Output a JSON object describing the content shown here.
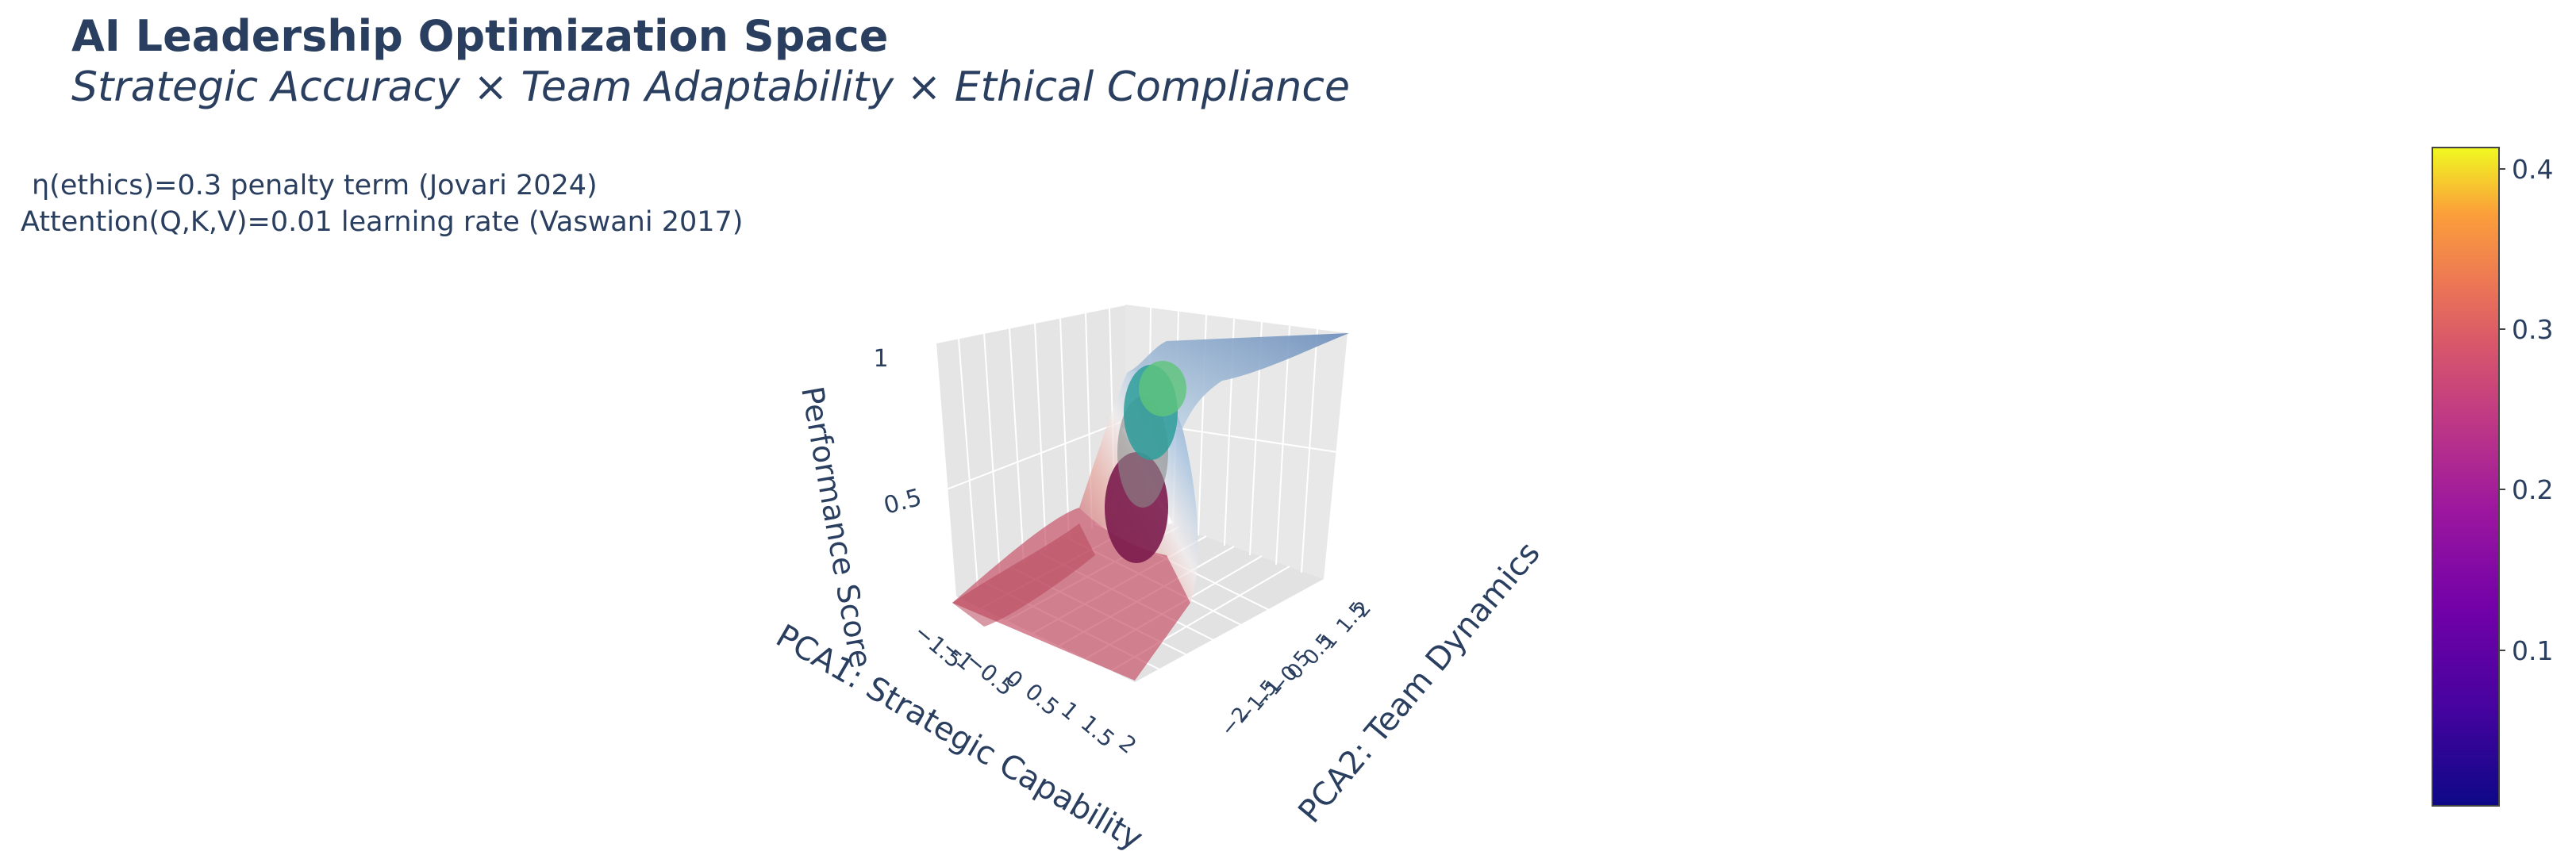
{
  "chart_data": {
    "type": "surface",
    "title": "AI Leadership Optimization Space",
    "subtitle": "Strategic Accuracy × Team Adaptability × Ethical Compliance",
    "annotations": [
      "η(ethics)=0.3 penalty term (Jovari 2024)",
      "Attention(Q,K,V)=0.01 learning rate (Vaswani 2017)"
    ],
    "x_axis": {
      "label": "PCA1: Strategic Capability",
      "ticks": [
        "−1.5",
        "−1",
        "−0.5",
        "0",
        "0.5",
        "1",
        "1.5",
        "2"
      ],
      "range": [
        -1.5,
        2
      ]
    },
    "y_axis": {
      "label": "PCA2: Team Dynamics",
      "ticks": [
        "−2",
        "−1.5",
        "−1",
        "−0.5",
        "0",
        "0.5",
        "1",
        "1.5",
        "2"
      ],
      "range": [
        -2,
        2
      ]
    },
    "z_axis": {
      "label": "Performance Score",
      "ticks": [
        "0.5",
        "1"
      ],
      "range": [
        0,
        1
      ]
    },
    "colorbar": {
      "colorscale": "Plasma",
      "ticks": [
        "0.1",
        "0.2",
        "0.3",
        "0.4"
      ],
      "range": [
        0.0,
        0.42
      ]
    },
    "surface": {
      "description_values": "sigmoid performance surface rising from ~0.1 at low PCA1 to ~1.0 at high PCA1",
      "low_value": 0.1,
      "high_value": 1.0,
      "colors": [
        "#b2182b",
        "#f7f7f7",
        "#2166ac"
      ]
    },
    "scatter": {
      "marker_colors": [
        "#7b1b4c",
        "#2e9e9a",
        "#5fc47a"
      ]
    }
  }
}
